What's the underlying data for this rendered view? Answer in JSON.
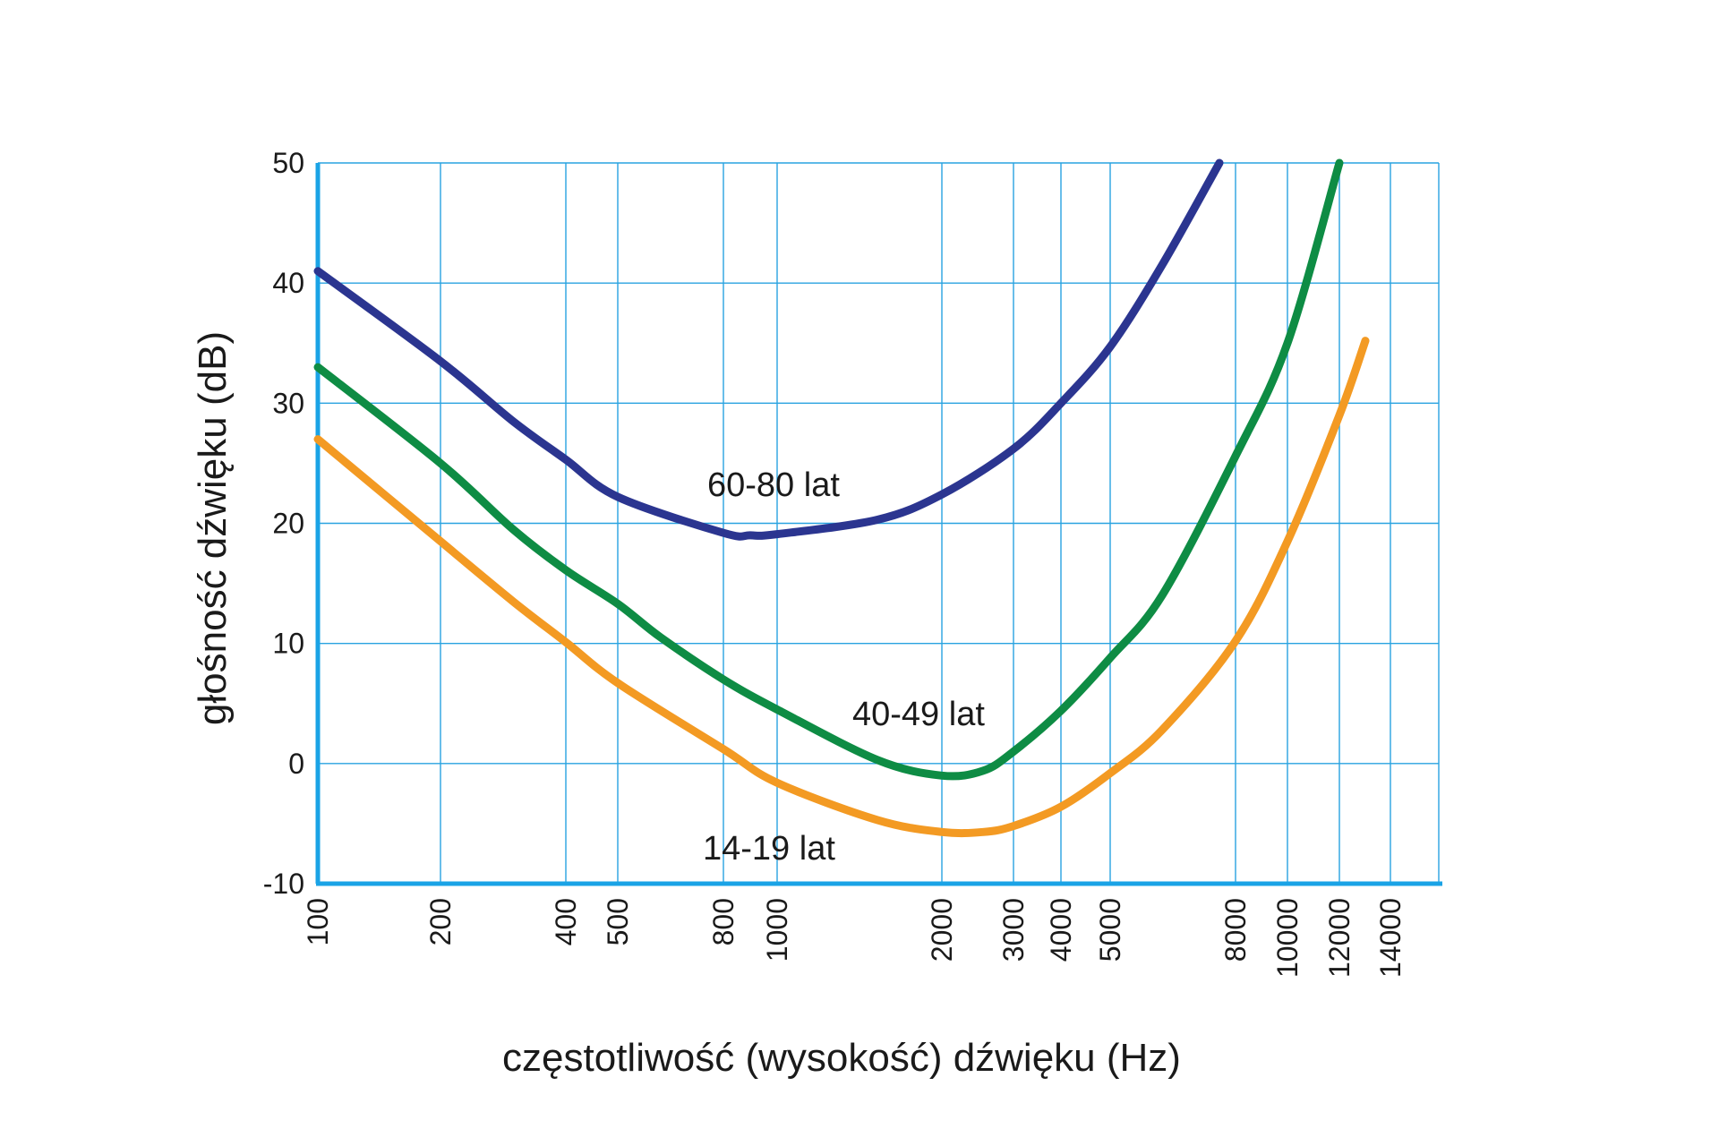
{
  "chart_data": {
    "type": "line",
    "xlabel": "częstotliwość (wysokość) dźwięku (Hz)",
    "ylabel": "głośność dźwięku (dB)",
    "ylim": [
      -10,
      50
    ],
    "y_ticks": [
      "50",
      "40",
      "30",
      "20",
      "10",
      "0",
      "-10"
    ],
    "x_ticks": [
      "100",
      "200",
      "400",
      "500",
      "800",
      "1000",
      "2000",
      "3000",
      "4000",
      "5000",
      "8000",
      "10000",
      "12000",
      "14000"
    ],
    "grid": true,
    "colors": {
      "grid": "#29a3e0",
      "axis": "#1aa3e6",
      "series_60_80": "#2b3590",
      "series_40_49": "#0e8c44",
      "series_14_19": "#f39a23"
    },
    "series": [
      {
        "name": "60-80 lat",
        "color": "#2b3590",
        "x": [
          "100",
          "200",
          "300",
          "400",
          "500",
          "800",
          "900",
          "1000",
          "1500",
          "2000",
          "3000",
          "4000",
          "5000",
          "6000",
          "7000"
        ],
        "values": [
          41,
          33.5,
          28.5,
          25.3,
          22.2,
          19.2,
          19.0,
          19.1,
          20.3,
          22.4,
          26.2,
          30,
          34.7,
          41.5,
          50
        ]
      },
      {
        "name": "40-49 lat",
        "color": "#0e8c44",
        "x": [
          "100",
          "200",
          "300",
          "400",
          "500",
          "600",
          "800",
          "1000",
          "1500",
          "2000",
          "2500",
          "3000",
          "4000",
          "5000",
          "6000",
          "8000",
          "10000",
          "12000"
        ],
        "values": [
          33,
          25,
          19.5,
          16.1,
          13.3,
          10.5,
          7,
          4.5,
          0.3,
          -1,
          -0.6,
          1,
          4.4,
          8.8,
          14,
          25.6,
          35,
          50
        ]
      },
      {
        "name": "14-19 lat",
        "color": "#f39a23",
        "x": [
          "100",
          "200",
          "300",
          "400",
          "500",
          "800",
          "1000",
          "1500",
          "2000",
          "2500",
          "3000",
          "4000",
          "5000",
          "6000",
          "8000",
          "10000",
          "12000",
          "13000"
        ],
        "values": [
          27,
          18.5,
          13.5,
          10.1,
          6.7,
          1.2,
          -1.6,
          -4.7,
          -5.7,
          -5.7,
          -5.2,
          -3.6,
          -0.8,
          2.8,
          10.2,
          18.5,
          29,
          35.2
        ]
      }
    ]
  }
}
